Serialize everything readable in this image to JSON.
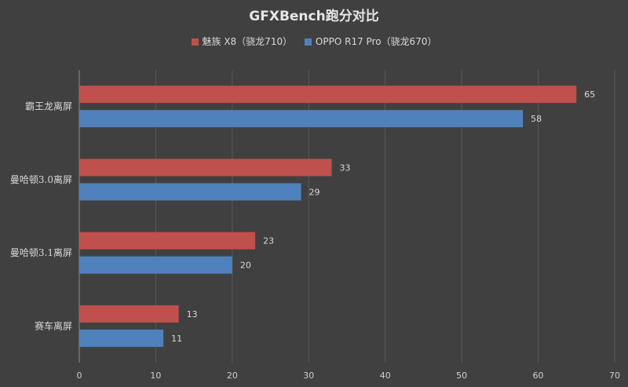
{
  "chart_data": {
    "type": "bar",
    "orientation": "horizontal",
    "title": "GFXBench跑分对比",
    "categories": [
      "霸王龙离屏",
      "曼哈顿3.0离屏",
      "曼哈顿3.1离屏",
      "赛车离屏"
    ],
    "series": [
      {
        "name": "魅族 X8（骁龙710）",
        "color": "#c0504d",
        "values": [
          65,
          33,
          23,
          13
        ]
      },
      {
        "name": "OPPO R17 Pro（骁龙670）",
        "color": "#4f81bd",
        "values": [
          58,
          29,
          20,
          11
        ]
      }
    ],
    "xlim": [
      0,
      70
    ],
    "xticks": [
      0,
      10,
      20,
      30,
      40,
      50,
      60,
      70
    ],
    "grid": true,
    "legend_position": "top",
    "data_labels": true
  }
}
